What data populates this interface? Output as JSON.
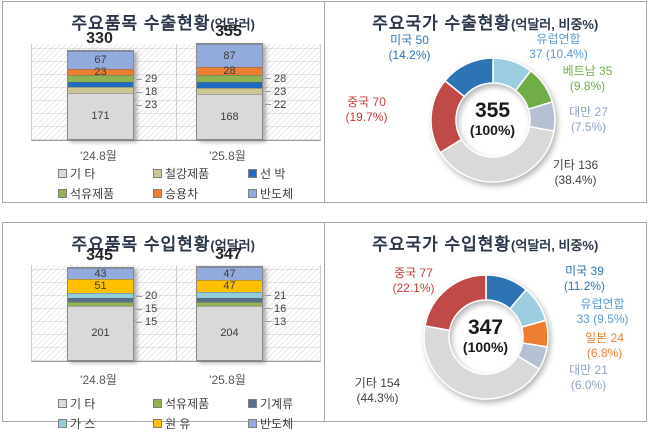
{
  "chart_data": [
    {
      "type": "bar",
      "subtype": "stacked-column",
      "title": "주요품목 수출현황",
      "title_unit": "(억달러)",
      "categories": [
        "'24.8월",
        "'25.8월"
      ],
      "totals": [
        "330",
        "355"
      ],
      "ylim": [
        0,
        360
      ],
      "grid": true,
      "legend_position": "bottom",
      "series": [
        {
          "name": "기 타",
          "color": "#d9d9d9",
          "values": [
            171,
            168
          ]
        },
        {
          "name": "철강제품",
          "color": "#cdc592",
          "values": [
            23,
            22
          ]
        },
        {
          "name": "선 박",
          "color": "#1f6bc2",
          "values": [
            18,
            23
          ]
        },
        {
          "name": "석유제품",
          "color": "#8fb353",
          "values": [
            29,
            28
          ]
        },
        {
          "name": "승용차",
          "color": "#ed7d31",
          "values": [
            23,
            28
          ]
        },
        {
          "name": "반도체",
          "color": "#92abdc",
          "values": [
            67,
            87
          ]
        }
      ],
      "inside_labels": [
        "기 타",
        "승용차",
        "반도체"
      ],
      "side_labels": [
        "철강제품",
        "선 박",
        "석유제품"
      ]
    },
    {
      "type": "pie",
      "subtype": "donut",
      "title": "주요국가 수출현황",
      "title_unit": "(억달러, 비중%)",
      "center_value": "355",
      "center_pct": "(100%)",
      "start_angle_deg": 0,
      "direction": "clockwise",
      "slices": [
        {
          "name": "유럽연합",
          "value": 37,
          "pct": "10.4%",
          "color": "#9dcde0",
          "label_color": "#5b9bd5",
          "label_line1": "유럽연합",
          "label_line2": "37 (10.4%)"
        },
        {
          "name": "베트남",
          "value": 35,
          "pct": "9.8%",
          "color": "#70ad47",
          "label_color": "#70ad47",
          "label_line1": "베트남 35",
          "label_line2": "(9.8%)"
        },
        {
          "name": "대만",
          "value": 27,
          "pct": "7.5%",
          "color": "#b5c0d2",
          "label_color": "#8ea3c2",
          "label_line1": "대만 27",
          "label_line2": "(7.5%)"
        },
        {
          "name": "기타",
          "value": 136,
          "pct": "38.4%",
          "color": "#d9d9d9",
          "label_color": "#404040",
          "label_line1": "기타 136",
          "label_line2": "(38.4%)"
        },
        {
          "name": "중국",
          "value": 70,
          "pct": "19.7%",
          "color": "#bf4a47",
          "label_color": "#c23c38",
          "label_line1": "중국 70",
          "label_line2": "(19.7%)"
        },
        {
          "name": "미국",
          "value": 50,
          "pct": "14.2%",
          "color": "#2e74b5",
          "label_color": "#2e74b5",
          "label_line1": "미국 50",
          "label_line2": "(14.2%)"
        }
      ]
    },
    {
      "type": "bar",
      "subtype": "stacked-column",
      "title": "주요품목 수입현황",
      "title_unit": "(억달러)",
      "categories": [
        "'24.8월",
        "'25.8월"
      ],
      "totals": [
        "345",
        "347"
      ],
      "ylim": [
        0,
        360
      ],
      "grid": true,
      "legend_position": "bottom",
      "series": [
        {
          "name": "기 타",
          "color": "#d9d9d9",
          "values": [
            201,
            204
          ]
        },
        {
          "name": "석유제품",
          "color": "#8fb353",
          "values": [
            15,
            13
          ]
        },
        {
          "name": "기계류",
          "color": "#54708c",
          "values": [
            15,
            16
          ]
        },
        {
          "name": "가 스",
          "color": "#92cddc",
          "values": [
            20,
            21
          ]
        },
        {
          "name": "원 유",
          "color": "#ffc000",
          "values": [
            51,
            47
          ]
        },
        {
          "name": "반도체",
          "color": "#92abdc",
          "values": [
            43,
            47
          ]
        }
      ],
      "inside_labels": [
        "기 타",
        "원 유",
        "반도체"
      ],
      "side_labels": [
        "석유제품",
        "기계류",
        "가 스"
      ]
    },
    {
      "type": "pie",
      "subtype": "donut",
      "title": "주요국가 수입현황",
      "title_unit": "(억달러, 비중%)",
      "center_value": "347",
      "center_pct": "(100%)",
      "start_angle_deg": 0,
      "direction": "clockwise",
      "slices": [
        {
          "name": "미국",
          "value": 39,
          "pct": "11.2%",
          "color": "#2e74b5",
          "label_color": "#2e74b5",
          "label_line1": "미국 39",
          "label_line2": "(11.2%)"
        },
        {
          "name": "유럽연합",
          "value": 33,
          "pct": "9.5%",
          "color": "#9dcde0",
          "label_color": "#5b9bd5",
          "label_line1": "유럽연합",
          "label_line2": "33 (9.5%)"
        },
        {
          "name": "일본",
          "value": 24,
          "pct": "6.8%",
          "color": "#ed7d31",
          "label_color": "#ed7d31",
          "label_line1": "일본 24",
          "label_line2": "(6.8%)"
        },
        {
          "name": "대만",
          "value": 21,
          "pct": "6.0%",
          "color": "#b5c0d2",
          "label_color": "#8ea3c2",
          "label_line1": "대만 21",
          "label_line2": "(6.0%)"
        },
        {
          "name": "기타",
          "value": 154,
          "pct": "44.3%",
          "color": "#d9d9d9",
          "label_color": "#404040",
          "label_line1": "기타 154",
          "label_line2": "(44.3%)"
        },
        {
          "name": "중국",
          "value": 77,
          "pct": "22.1%",
          "color": "#bf4a47",
          "label_color": "#c23c38",
          "label_line1": "중국 77",
          "label_line2": "(22.1%)"
        }
      ]
    }
  ]
}
